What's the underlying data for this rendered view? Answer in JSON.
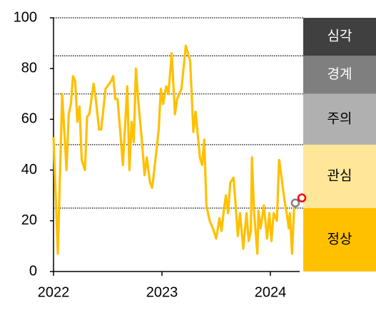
{
  "chart_data": {
    "type": "line",
    "xlim": [
      2022,
      2024.27
    ],
    "xticks": [
      2022,
      2023,
      2024
    ],
    "ylim": [
      0,
      100
    ],
    "yticks": [
      0,
      20,
      40,
      60,
      80,
      100
    ],
    "series": [
      {
        "color": "#ffc000",
        "x": [
          2022.0,
          2022.04,
          2022.08,
          2022.12,
          2022.14,
          2022.16,
          2022.18,
          2022.2,
          2022.22,
          2022.24,
          2022.26,
          2022.29,
          2022.31,
          2022.33,
          2022.37,
          2022.39,
          2022.42,
          2022.44,
          2022.48,
          2022.53,
          2022.55,
          2022.57,
          2022.59,
          2022.61,
          2022.64,
          2022.68,
          2022.7,
          2022.72,
          2022.74,
          2022.76,
          2022.78,
          2022.81,
          2022.84,
          2022.86,
          2022.89,
          2022.91,
          2022.94,
          2022.97,
          2022.99,
          2023.01,
          2023.04,
          2023.06,
          2023.09,
          2023.12,
          2023.14,
          2023.18,
          2023.22,
          2023.26,
          2023.29,
          2023.31,
          2023.35,
          2023.37,
          2023.39,
          2023.41,
          2023.44,
          2023.47,
          2023.5,
          2023.53,
          2023.55,
          2023.57,
          2023.59,
          2023.61,
          2023.63,
          2023.66,
          2023.68,
          2023.7,
          2023.72,
          2023.75,
          2023.78,
          2023.8,
          2023.82,
          2023.83,
          2023.85,
          2023.88,
          2023.89,
          2023.91,
          2023.94,
          2023.97,
          2023.99,
          2024.01,
          2024.03,
          2024.06,
          2024.08,
          2024.1,
          2024.13,
          2024.15,
          2024.17,
          2024.18,
          2024.2,
          2024.22
        ],
        "values": [
          53,
          7,
          70,
          40,
          62,
          66,
          77,
          75,
          59,
          65,
          44,
          40,
          61,
          62,
          74,
          68,
          56,
          56,
          72,
          75,
          77,
          68,
          68,
          58,
          42,
          73,
          40,
          59,
          51,
          80,
          68,
          54,
          38,
          45,
          35,
          33,
          44,
          56,
          72,
          66,
          73,
          70,
          86,
          62,
          68,
          72,
          89,
          83,
          55,
          63,
          45,
          42,
          52,
          26,
          20,
          17,
          13,
          21,
          16,
          24,
          30,
          23,
          35,
          37,
          26,
          14,
          23,
          9,
          23,
          12,
          16,
          45,
          23,
          7,
          24,
          17,
          26,
          13,
          23,
          12,
          23,
          20,
          44,
          38,
          28,
          23,
          17,
          23,
          7,
          26
        ]
      }
    ],
    "markers": [
      {
        "x": 2024.23,
        "y": 27,
        "color": "#808080"
      },
      {
        "x": 2024.29,
        "y": 29,
        "color": "#ff0000"
      }
    ],
    "bands": [
      {
        "label": "심각",
        "from": 85,
        "to": 100,
        "color": "#404040",
        "text_color": "#ffffff"
      },
      {
        "label": "경계",
        "from": 70,
        "to": 85,
        "color": "#7f7f7f",
        "text_color": "#ffffff"
      },
      {
        "label": "주의",
        "from": 50,
        "to": 70,
        "color": "#b0b0b0",
        "text_color": "#000000"
      },
      {
        "label": "관심",
        "from": 25,
        "to": 50,
        "color": "#ffe699",
        "text_color": "#000000"
      },
      {
        "label": "정상",
        "from": 0,
        "to": 25,
        "color": "#ffc000",
        "text_color": "#000000"
      }
    ]
  }
}
